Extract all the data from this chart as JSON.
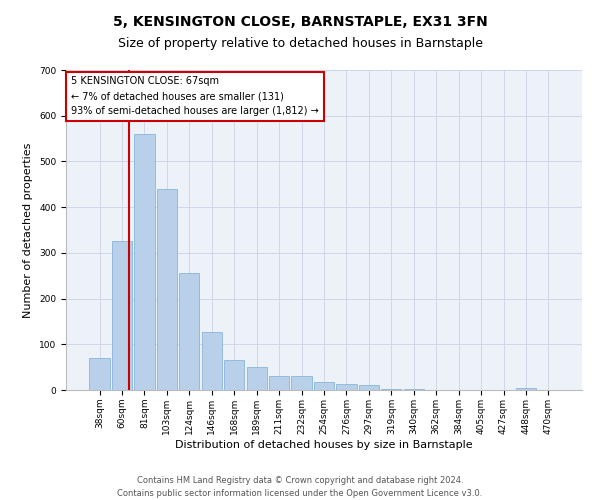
{
  "title": "5, KENSINGTON CLOSE, BARNSTAPLE, EX31 3FN",
  "subtitle": "Size of property relative to detached houses in Barnstaple",
  "xlabel": "Distribution of detached houses by size in Barnstaple",
  "ylabel": "Number of detached properties",
  "categories": [
    "38sqm",
    "60sqm",
    "81sqm",
    "103sqm",
    "124sqm",
    "146sqm",
    "168sqm",
    "189sqm",
    "211sqm",
    "232sqm",
    "254sqm",
    "276sqm",
    "297sqm",
    "319sqm",
    "340sqm",
    "362sqm",
    "384sqm",
    "405sqm",
    "427sqm",
    "448sqm",
    "470sqm"
  ],
  "values": [
    70,
    325,
    560,
    440,
    255,
    127,
    65,
    50,
    30,
    30,
    17,
    13,
    10,
    3,
    2,
    0,
    0,
    0,
    0,
    5,
    0
  ],
  "bar_color": "#b8d0ea",
  "bar_edge_color": "#7aadd4",
  "property_label": "5 KENSINGTON CLOSE: 67sqm",
  "annotation_line1": "← 7% of detached houses are smaller (131)",
  "annotation_line2": "93% of semi-detached houses are larger (1,812) →",
  "vline_color": "#cc0000",
  "ylim": [
    0,
    700
  ],
  "yticks": [
    0,
    100,
    200,
    300,
    400,
    500,
    600,
    700
  ],
  "annotation_box_color": "#ffffff",
  "annotation_box_edge": "#cc0000",
  "grid_color": "#c8d4e8",
  "background_color": "#edf2f9",
  "footer": "Contains HM Land Registry data © Crown copyright and database right 2024.\nContains public sector information licensed under the Open Government Licence v3.0.",
  "title_fontsize": 10,
  "subtitle_fontsize": 9,
  "xlabel_fontsize": 8,
  "ylabel_fontsize": 8,
  "tick_fontsize": 6.5,
  "annot_fontsize": 7,
  "footer_fontsize": 6
}
